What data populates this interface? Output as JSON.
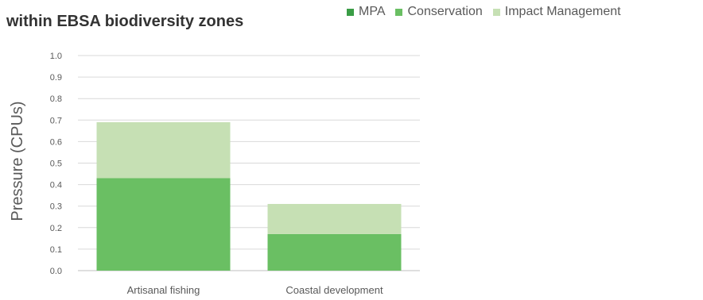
{
  "chart_data": {
    "type": "bar",
    "stacked": true,
    "title": "within EBSA biodiversity zones",
    "xlabel": "",
    "ylabel": "Pressure (CPUs)",
    "categories": [
      "Artisanal fishing",
      "Coastal development"
    ],
    "series": [
      {
        "name": "MPA",
        "values": [
          0,
          0
        ],
        "color": "#3a9d46"
      },
      {
        "name": "Conservation",
        "values": [
          0.43,
          0.17
        ],
        "color": "#6abf63"
      },
      {
        "name": "Impact Management",
        "values": [
          0.26,
          0.14
        ],
        "color": "#c6e0b4"
      }
    ],
    "ylim": [
      0,
      1.0
    ],
    "yticks": [
      "0.0",
      "0.1",
      "0.2",
      "0.3",
      "0.4",
      "0.5",
      "0.6",
      "0.7",
      "0.8",
      "0.9",
      "1.0"
    ],
    "grid": true,
    "legend_position": "top"
  }
}
